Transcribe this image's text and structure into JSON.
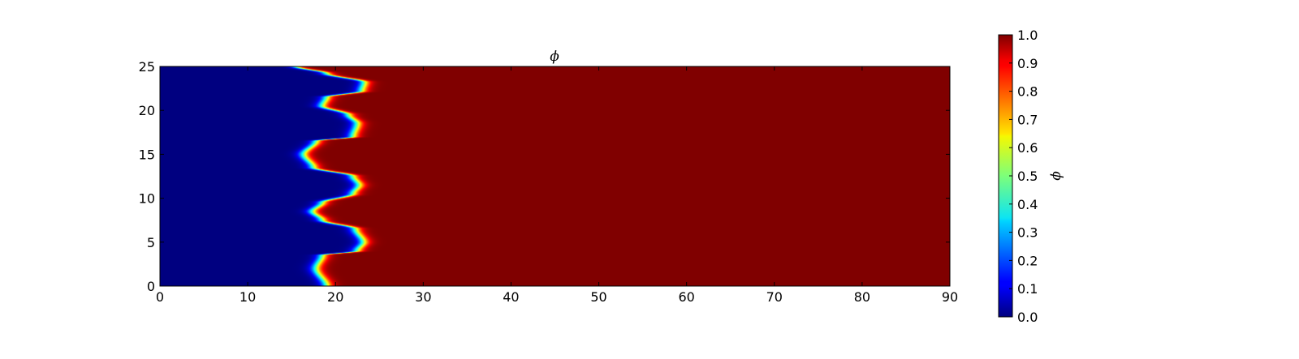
{
  "chart_data": {
    "type": "heatmap",
    "title": "ϕ",
    "xlabel": "",
    "ylabel": "",
    "colorbar_label": "ϕ",
    "colormap": "jet",
    "xlim": [
      0,
      90
    ],
    "ylim": [
      0,
      25
    ],
    "clim": [
      0.0,
      1.0
    ],
    "xticks": [
      0,
      10,
      20,
      30,
      40,
      50,
      60,
      70,
      80,
      90
    ],
    "xtick_labels": [
      "0",
      "10",
      "20",
      "30",
      "40",
      "50",
      "60",
      "70",
      "80",
      "90"
    ],
    "yticks": [
      0,
      5,
      10,
      15,
      20,
      25
    ],
    "ytick_labels": [
      "0",
      "5",
      "10",
      "15",
      "20",
      "25"
    ],
    "colorbar_ticks": [
      0.0,
      0.1,
      0.2,
      0.3,
      0.4,
      0.5,
      0.6,
      0.7,
      0.8,
      0.9,
      1.0
    ],
    "colorbar_tick_labels": [
      "0.0",
      "0.1",
      "0.2",
      "0.3",
      "0.4",
      "0.5",
      "0.6",
      "0.7",
      "0.8",
      "0.9",
      "1.0"
    ],
    "interface": {
      "description_value_left": 0.0,
      "value_right": 1.0,
      "points": [
        {
          "y": 0.0,
          "x": 19.0
        },
        {
          "y": 2.0,
          "x": 17.8
        },
        {
          "y": 3.5,
          "x": 18.5
        },
        {
          "y": 4.0,
          "x": 22.5
        },
        {
          "y": 5.0,
          "x": 23.2
        },
        {
          "y": 6.5,
          "x": 22.3
        },
        {
          "y": 7.5,
          "x": 18.5
        },
        {
          "y": 8.5,
          "x": 17.4
        },
        {
          "y": 9.5,
          "x": 18.5
        },
        {
          "y": 10.5,
          "x": 22.0
        },
        {
          "y": 11.5,
          "x": 22.7
        },
        {
          "y": 12.5,
          "x": 22.0
        },
        {
          "y": 13.5,
          "x": 17.5
        },
        {
          "y": 15.0,
          "x": 16.4
        },
        {
          "y": 16.5,
          "x": 17.8
        },
        {
          "y": 17.0,
          "x": 22.0
        },
        {
          "y": 18.5,
          "x": 22.5
        },
        {
          "y": 19.5,
          "x": 21.5
        },
        {
          "y": 20.5,
          "x": 18.5
        },
        {
          "y": 21.5,
          "x": 19.0
        },
        {
          "y": 22.2,
          "x": 23.0
        },
        {
          "y": 23.2,
          "x": 23.3
        },
        {
          "y": 24.2,
          "x": 19.0
        },
        {
          "y": 25.0,
          "x": 15.5
        }
      ],
      "width": 0.9
    }
  }
}
